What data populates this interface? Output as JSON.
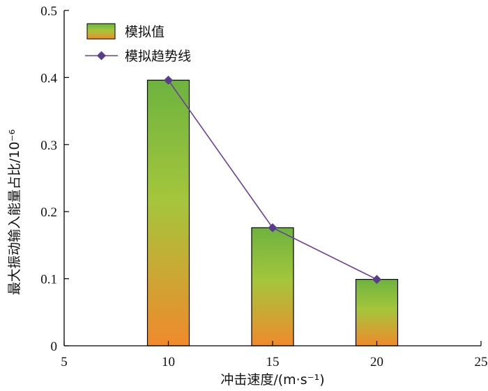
{
  "chart_data": {
    "type": "bar",
    "x": [
      10,
      15,
      20
    ],
    "values": [
      0.396,
      0.176,
      0.099
    ],
    "trend_values": [
      0.396,
      0.176,
      0.099
    ],
    "xlabel": "冲击速度/(m·s⁻¹)",
    "ylabel": "最大振动输入能量占比/10⁻⁶",
    "xlim": [
      5,
      25
    ],
    "ylim": [
      0,
      0.5
    ],
    "xticks": [
      "5",
      "10",
      "15",
      "20",
      "25"
    ],
    "yticks": [
      "0",
      "0.1",
      "0.2",
      "0.3",
      "0.4",
      "0.5"
    ],
    "legend": {
      "position": "top-left",
      "entries": [
        "模拟值",
        "模拟趋势线"
      ]
    },
    "colors": {
      "bar_top": "#6db33f",
      "bar_mid": "#a4c63c",
      "bar_bottom": "#f08a2c",
      "trend_line": "#6b3f9c",
      "trend_marker": "#5b3b8c",
      "axis": "#000000"
    }
  }
}
